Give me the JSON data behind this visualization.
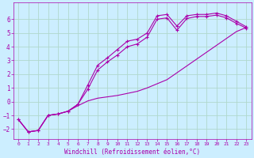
{
  "bg_color": "#cceeff",
  "grid_color": "#b0d8cc",
  "line_color": "#aa00aa",
  "marker_color": "#aa00aa",
  "xlabel": "Windchill (Refroidissement éolien,°C)",
  "xlabel_color": "#aa00aa",
  "tick_color": "#aa00aa",
  "xlim": [
    -0.5,
    23.5
  ],
  "ylim": [
    -2.7,
    7.2
  ],
  "yticks": [
    -2,
    -1,
    0,
    1,
    2,
    3,
    4,
    5,
    6
  ],
  "xticks": [
    0,
    1,
    2,
    3,
    4,
    5,
    6,
    7,
    8,
    9,
    10,
    11,
    12,
    13,
    14,
    15,
    16,
    17,
    18,
    19,
    20,
    21,
    22,
    23
  ],
  "series1_x": [
    0,
    1,
    2,
    3,
    4,
    5,
    6,
    7,
    8,
    9,
    10,
    11,
    12,
    13,
    14,
    15,
    16,
    17,
    18,
    19,
    20,
    21,
    22,
    23
  ],
  "series1_y": [
    -1.3,
    -2.2,
    -2.1,
    -1.0,
    -0.9,
    -0.7,
    -0.3,
    0.05,
    0.25,
    0.35,
    0.45,
    0.6,
    0.75,
    1.0,
    1.3,
    1.6,
    2.1,
    2.6,
    3.1,
    3.6,
    4.1,
    4.6,
    5.1,
    5.4
  ],
  "series2_x": [
    0,
    1,
    2,
    3,
    4,
    5,
    6,
    7,
    8,
    9,
    10,
    11,
    12,
    13,
    14,
    15,
    16,
    17,
    18,
    19,
    20,
    21,
    22,
    23
  ],
  "series2_y": [
    -1.3,
    -2.2,
    -2.1,
    -1.0,
    -0.9,
    -0.7,
    -0.2,
    1.2,
    2.65,
    3.2,
    3.8,
    4.4,
    4.55,
    5.0,
    6.25,
    6.35,
    5.5,
    6.25,
    6.35,
    6.35,
    6.45,
    6.25,
    5.85,
    5.45
  ],
  "series3_x": [
    0,
    1,
    2,
    3,
    4,
    5,
    6,
    7,
    8,
    9,
    10,
    11,
    12,
    13,
    14,
    15,
    16,
    17,
    18,
    19,
    20,
    21,
    22,
    23
  ],
  "series3_y": [
    -1.3,
    -2.2,
    -2.1,
    -1.0,
    -0.9,
    -0.7,
    -0.2,
    0.9,
    2.3,
    2.9,
    3.4,
    4.0,
    4.2,
    4.7,
    6.0,
    6.1,
    5.2,
    6.05,
    6.2,
    6.2,
    6.3,
    6.1,
    5.7,
    5.35
  ]
}
